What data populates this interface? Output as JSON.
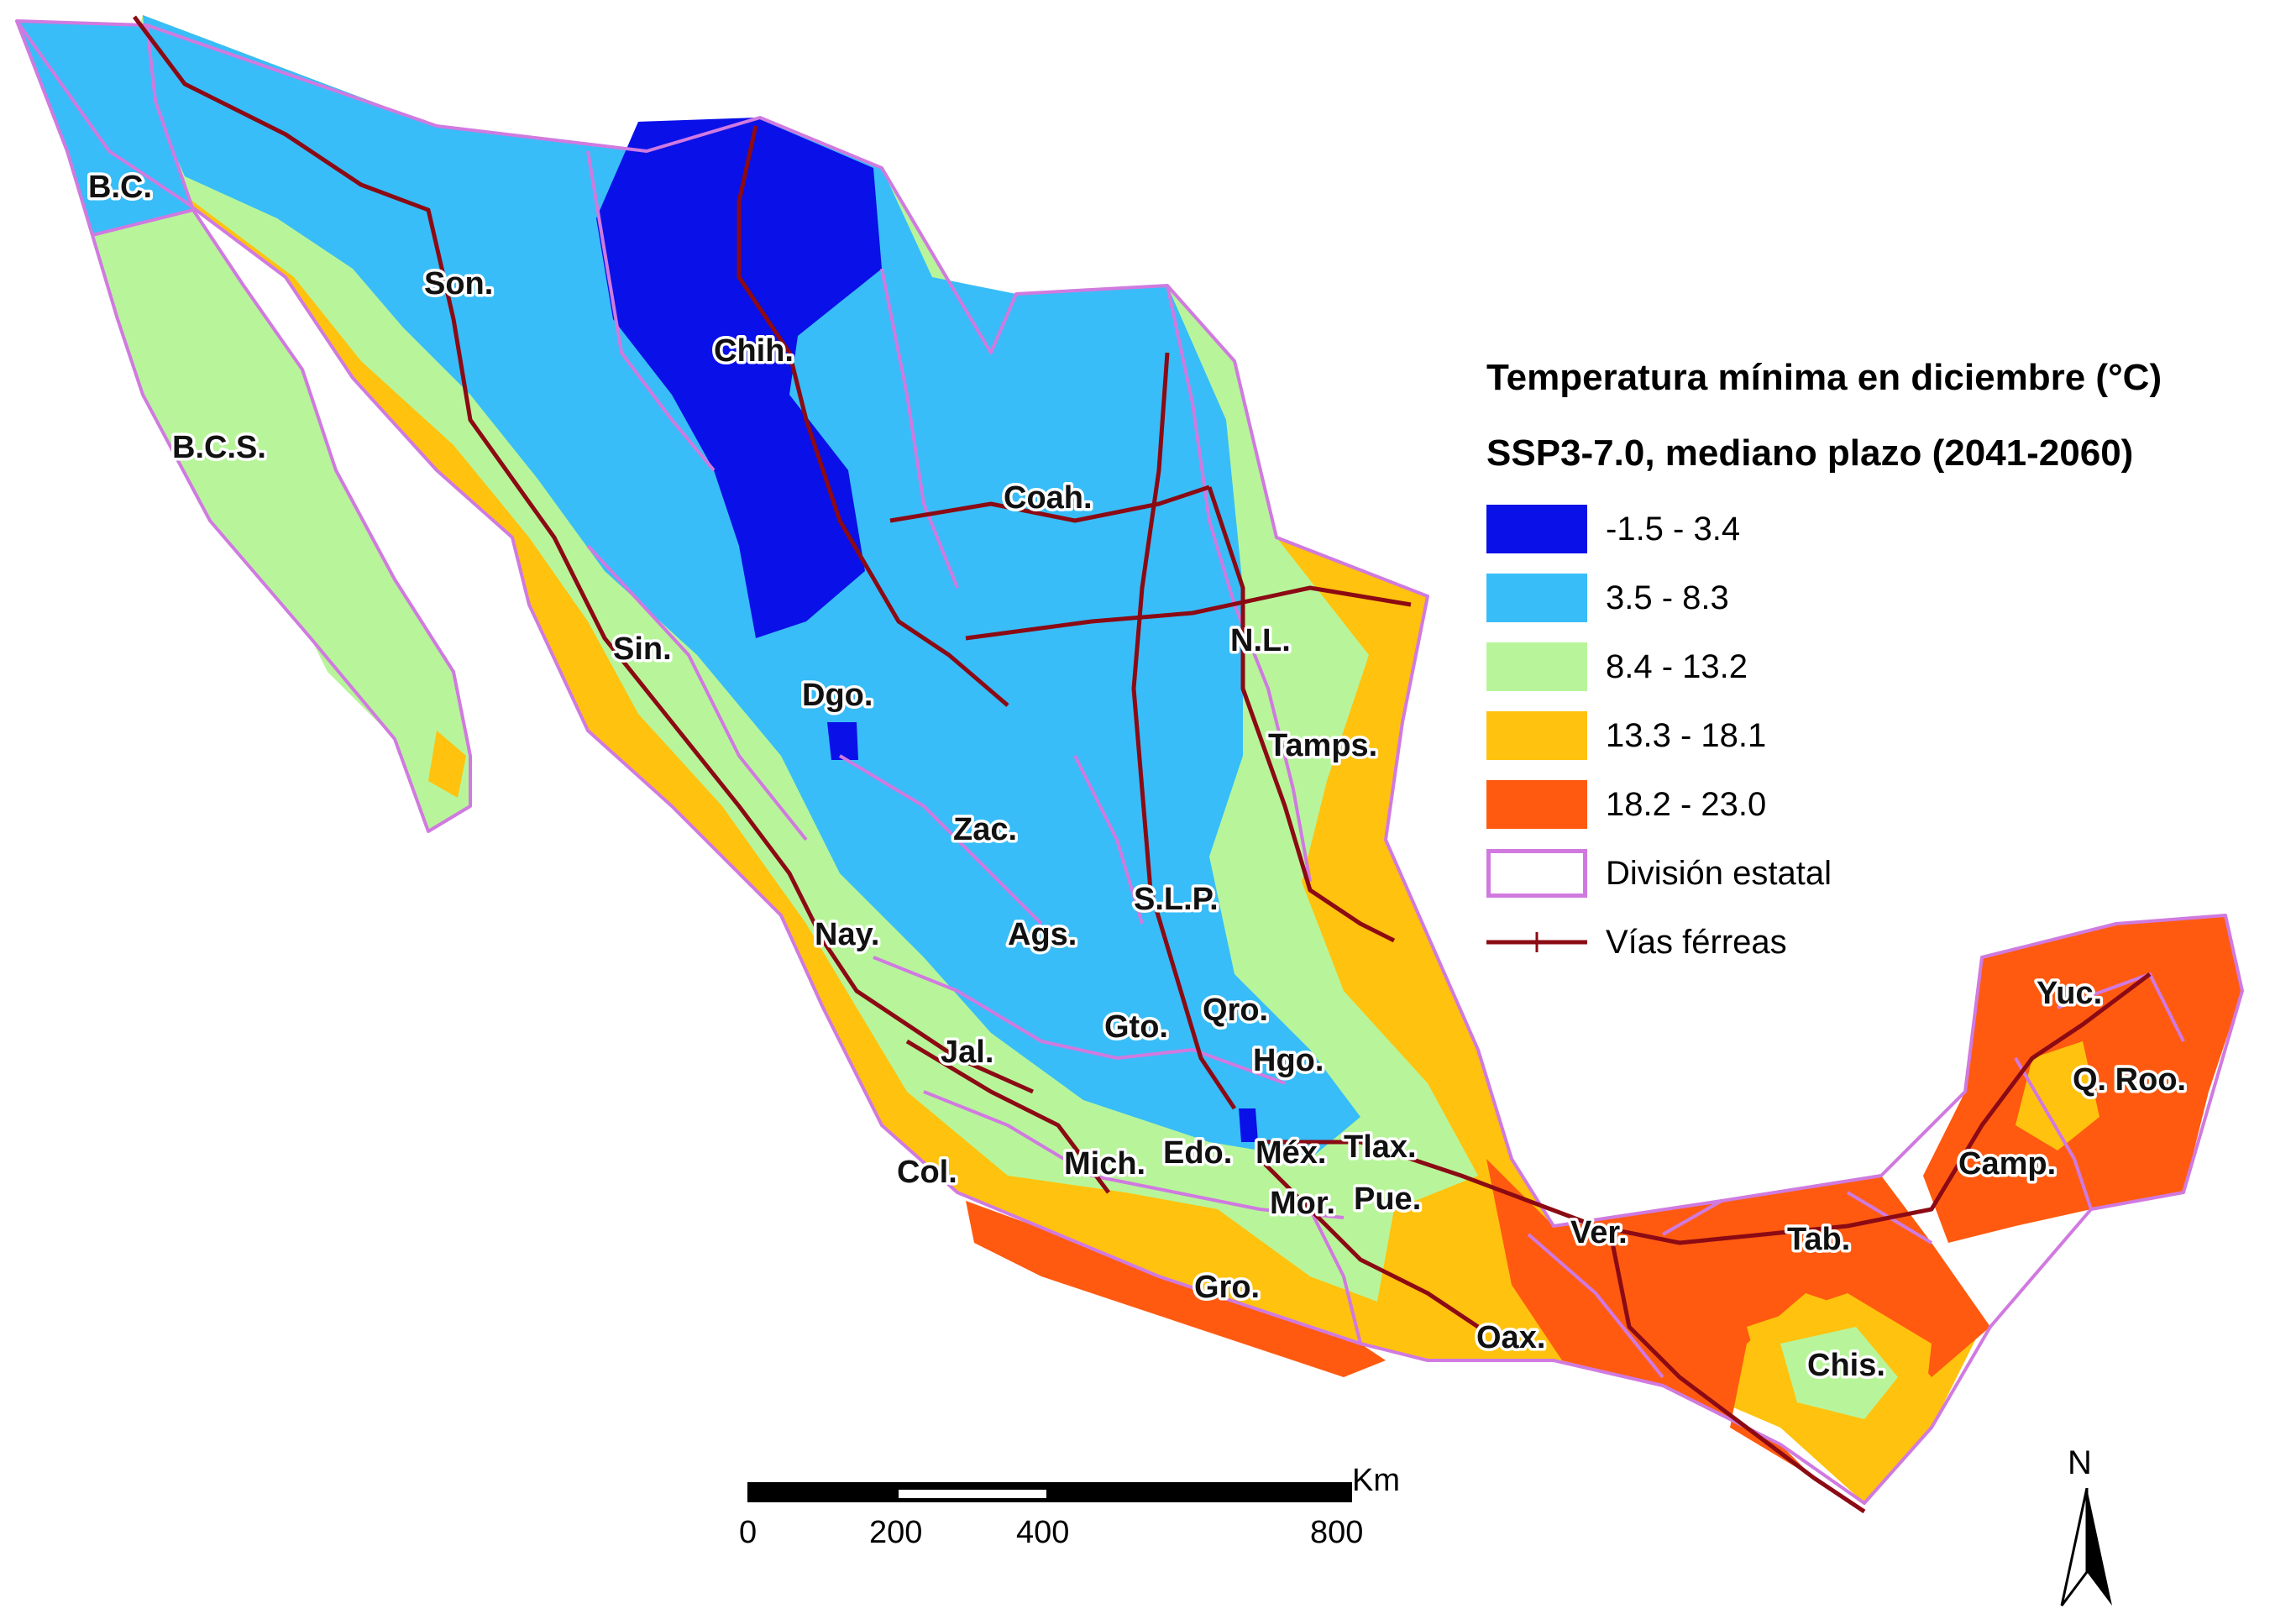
{
  "legend": {
    "title": "Temperatura mínima en diciembre (°C)",
    "subtitle": "SSP3-7.0, mediano plazo (2041-2060)",
    "classes": [
      {
        "label": "-1.5 - 3.4",
        "color": "#0a10e8"
      },
      {
        "label": "3.5 - 8.3",
        "color": "#38bdf8"
      },
      {
        "label": "8.4 - 13.2",
        "color": "#b8f59a"
      },
      {
        "label": "13.3 - 18.1",
        "color": "#ffc20e"
      },
      {
        "label": "18.2 - 23.0",
        "color": "#ff5a10"
      }
    ],
    "state_division_label": "División estatal",
    "state_division_color": "#d07ae0",
    "railway_label": "Vías férreas",
    "railway_color": "#8b0a14"
  },
  "states": [
    {
      "key": "bc",
      "label": "B.C."
    },
    {
      "key": "son",
      "label": "Son."
    },
    {
      "key": "chih",
      "label": "Chih."
    },
    {
      "key": "bcs",
      "label": "B.C.S."
    },
    {
      "key": "coah",
      "label": "Coah."
    },
    {
      "key": "nl",
      "label": "N.L."
    },
    {
      "key": "sin",
      "label": "Sin."
    },
    {
      "key": "dgo",
      "label": "Dgo."
    },
    {
      "key": "tamps",
      "label": "Tamps."
    },
    {
      "key": "zac",
      "label": "Zac."
    },
    {
      "key": "slp",
      "label": "S.L.P."
    },
    {
      "key": "nay",
      "label": "Nay."
    },
    {
      "key": "ags",
      "label": "Ags."
    },
    {
      "key": "qro",
      "label": "Qro."
    },
    {
      "key": "gto",
      "label": "Gto."
    },
    {
      "key": "jal",
      "label": "Jal."
    },
    {
      "key": "hgo",
      "label": "Hgo."
    },
    {
      "key": "yuc",
      "label": "Yuc."
    },
    {
      "key": "qroo",
      "label": "Q. Roo."
    },
    {
      "key": "edo",
      "label": "Edo."
    },
    {
      "key": "mex",
      "label": "Méx."
    },
    {
      "key": "tlax",
      "label": "Tlax."
    },
    {
      "key": "mich",
      "label": "Mich."
    },
    {
      "key": "col",
      "label": "Col."
    },
    {
      "key": "camp",
      "label": "Camp."
    },
    {
      "key": "mor",
      "label": "Mor."
    },
    {
      "key": "pue",
      "label": "Pue."
    },
    {
      "key": "ver",
      "label": "Ver."
    },
    {
      "key": "tab",
      "label": "Tab."
    },
    {
      "key": "gro",
      "label": "Gro."
    },
    {
      "key": "oax",
      "label": "Oax."
    },
    {
      "key": "chis",
      "label": "Chis."
    }
  ],
  "scale_bar": {
    "unit": "Km",
    "ticks": [
      "0",
      "200",
      "400",
      "800"
    ]
  },
  "north_arrow": {
    "letter": "N",
    "icon": "north-arrow-icon"
  }
}
